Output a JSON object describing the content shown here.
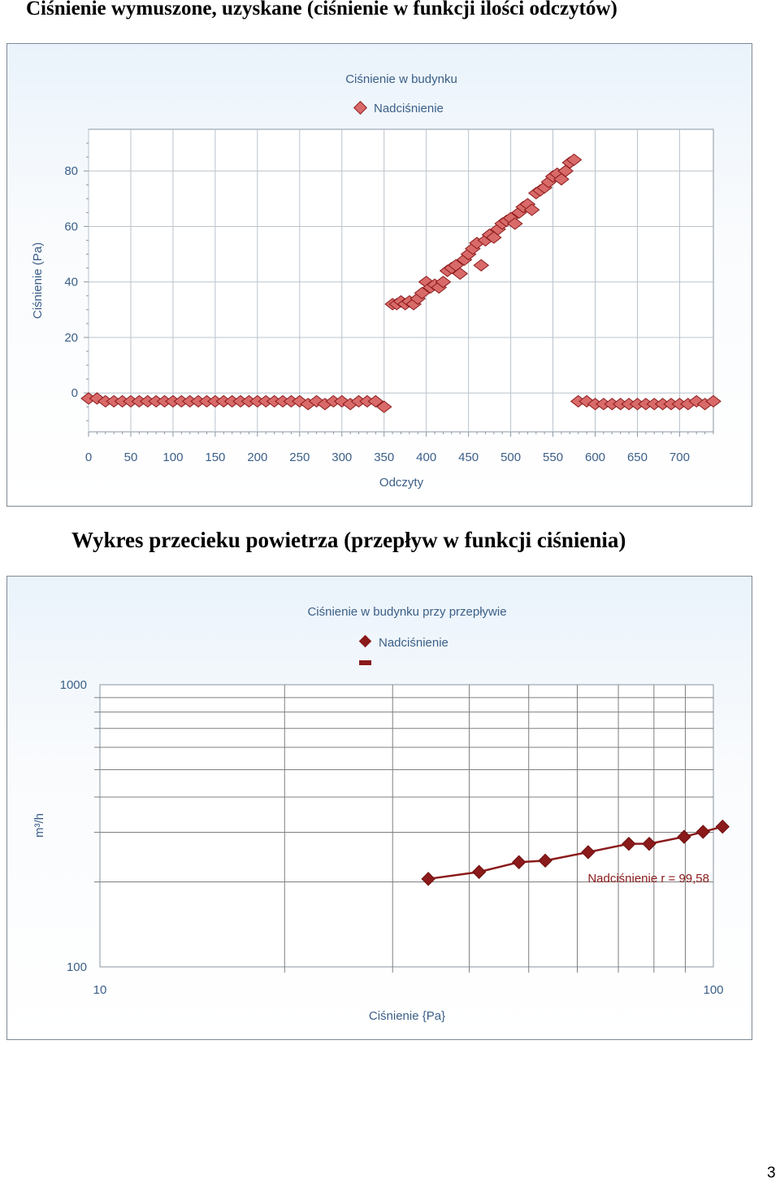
{
  "headings": {
    "top": "Ciśnienie wymuszone, uzyskane (ciśnienie w funkcji ilości odczytów)",
    "bottom": "Wykres przecieku powietrza (przepływ w funkcji ciśnienia)"
  },
  "page_number": "3",
  "colors": {
    "series": "#8b1a1a",
    "marker_light": "#d96a6a",
    "grid": "#b9c3cc",
    "text": "#3b5f87"
  },
  "chart_data": [
    {
      "type": "scatter",
      "title": "Ciśnienie w budynku",
      "xlabel": "Odczyty",
      "ylabel": "Ciśnienie (Pa)",
      "xlim": [
        0,
        740
      ],
      "ylim": [
        -14,
        95
      ],
      "x_ticks": [
        "0",
        "50",
        "100",
        "150",
        "200",
        "250",
        "300",
        "350",
        "400",
        "450",
        "500",
        "550",
        "600",
        "650",
        "700"
      ],
      "y_ticks": [
        "0",
        "20",
        "40",
        "60",
        "80"
      ],
      "grid": true,
      "legend": "top",
      "series": [
        {
          "name": "Nadciśnienie",
          "x": [
            0,
            10,
            20,
            30,
            40,
            50,
            60,
            70,
            80,
            90,
            100,
            110,
            120,
            130,
            140,
            150,
            160,
            170,
            180,
            190,
            200,
            210,
            220,
            230,
            240,
            250,
            260,
            270,
            280,
            290,
            300,
            310,
            320,
            330,
            340,
            350,
            360,
            365,
            370,
            375,
            380,
            385,
            390,
            395,
            400,
            405,
            410,
            415,
            420,
            425,
            430,
            435,
            440,
            445,
            450,
            455,
            460,
            465,
            470,
            475,
            480,
            485,
            490,
            495,
            500,
            505,
            510,
            515,
            520,
            525,
            530,
            535,
            540,
            545,
            550,
            555,
            560,
            565,
            570,
            575,
            580,
            590,
            600,
            610,
            620,
            630,
            640,
            650,
            660,
            670,
            680,
            690,
            700,
            710,
            720,
            730,
            740
          ],
          "y": [
            -2,
            -2,
            -3,
            -3,
            -3,
            -3,
            -3,
            -3,
            -3,
            -3,
            -3,
            -3,
            -3,
            -3,
            -3,
            -3,
            -3,
            -3,
            -3,
            -3,
            -3,
            -3,
            -3,
            -3,
            -3,
            -3,
            -4,
            -3,
            -4,
            -3,
            -3,
            -4,
            -3,
            -3,
            -3,
            -5,
            32,
            32,
            33,
            32,
            33,
            32,
            34,
            36,
            40,
            38,
            39,
            38,
            40,
            44,
            45,
            46,
            43,
            48,
            50,
            52,
            54,
            46,
            55,
            57,
            56,
            59,
            61,
            62,
            63,
            61,
            65,
            67,
            68,
            66,
            72,
            73,
            74,
            76,
            78,
            79,
            77,
            80,
            83,
            84,
            -3,
            -3,
            -4,
            -4,
            -4,
            -4,
            -4,
            -4,
            -4,
            -4,
            -4,
            -4,
            -4,
            -4,
            -3,
            -4,
            -3
          ]
        }
      ]
    },
    {
      "type": "line",
      "title": "Ciśnienie w budynku przy przepływie",
      "xlabel": "Ciśnienie {Pa}",
      "ylabel": "m³/h",
      "x_scale": "log",
      "y_scale": "log",
      "xlim": [
        10,
        100
      ],
      "ylim": [
        100,
        1000
      ],
      "x_tick_labels": [
        "10",
        "100"
      ],
      "y_tick_labels": [
        "100",
        "1000"
      ],
      "grid": true,
      "legend": "top",
      "annotation": "Nadciśnienie r = 99,58",
      "series": [
        {
          "name": "Nadciśnienie",
          "x": [
            34.3,
            41.5,
            48.2,
            53.2,
            62.5,
            72.8,
            78.6,
            89.6,
            96.2,
            103.5
          ],
          "y": [
            205,
            217,
            235,
            238,
            255,
            273,
            273,
            289,
            301,
            314
          ]
        }
      ]
    }
  ]
}
